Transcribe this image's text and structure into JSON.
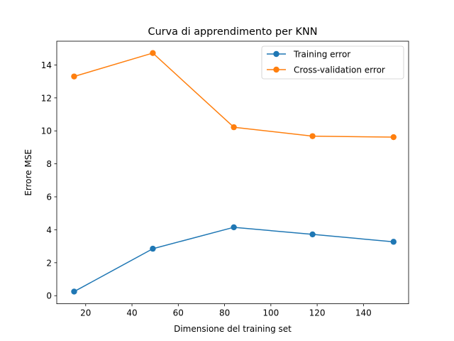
{
  "chart_data": {
    "type": "line",
    "title": "Curva di apprendimento per KNN",
    "xlabel": "Dimensione del training set",
    "ylabel": "Errore MSE",
    "xlim": [
      7.5,
      159.5
    ],
    "ylim": [
      -0.49,
      15.44
    ],
    "xticks": [
      20,
      40,
      60,
      80,
      100,
      120,
      140
    ],
    "yticks": [
      0,
      2,
      4,
      6,
      8,
      10,
      12,
      14
    ],
    "grid": false,
    "legend_position": "upper right",
    "x": [
      15,
      49,
      84,
      118,
      153
    ],
    "series": [
      {
        "name": "Training error",
        "color": "#1f77b4",
        "marker": "circle",
        "values": [
          0.25,
          2.85,
          4.15,
          3.72,
          3.27
        ]
      },
      {
        "name": "Cross-validation error",
        "color": "#ff7f0e",
        "marker": "circle",
        "values": [
          13.3,
          14.72,
          10.22,
          9.68,
          9.62
        ]
      }
    ]
  }
}
